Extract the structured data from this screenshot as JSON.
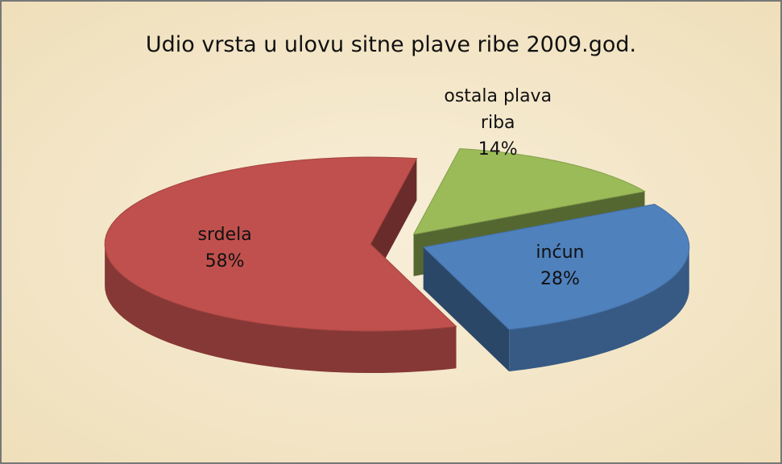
{
  "chart_data": {
    "type": "pie",
    "title": "Udio vrsta u ulovu sitne plave ribe 2009.god.",
    "categories": [
      "srdela",
      "inćun",
      "ostala plava riba"
    ],
    "values": [
      58,
      28,
      14
    ],
    "value_labels": [
      "58%",
      "28%",
      "14%"
    ],
    "colors": [
      "#c0504d",
      "#4f81bd",
      "#9bbb59"
    ]
  }
}
